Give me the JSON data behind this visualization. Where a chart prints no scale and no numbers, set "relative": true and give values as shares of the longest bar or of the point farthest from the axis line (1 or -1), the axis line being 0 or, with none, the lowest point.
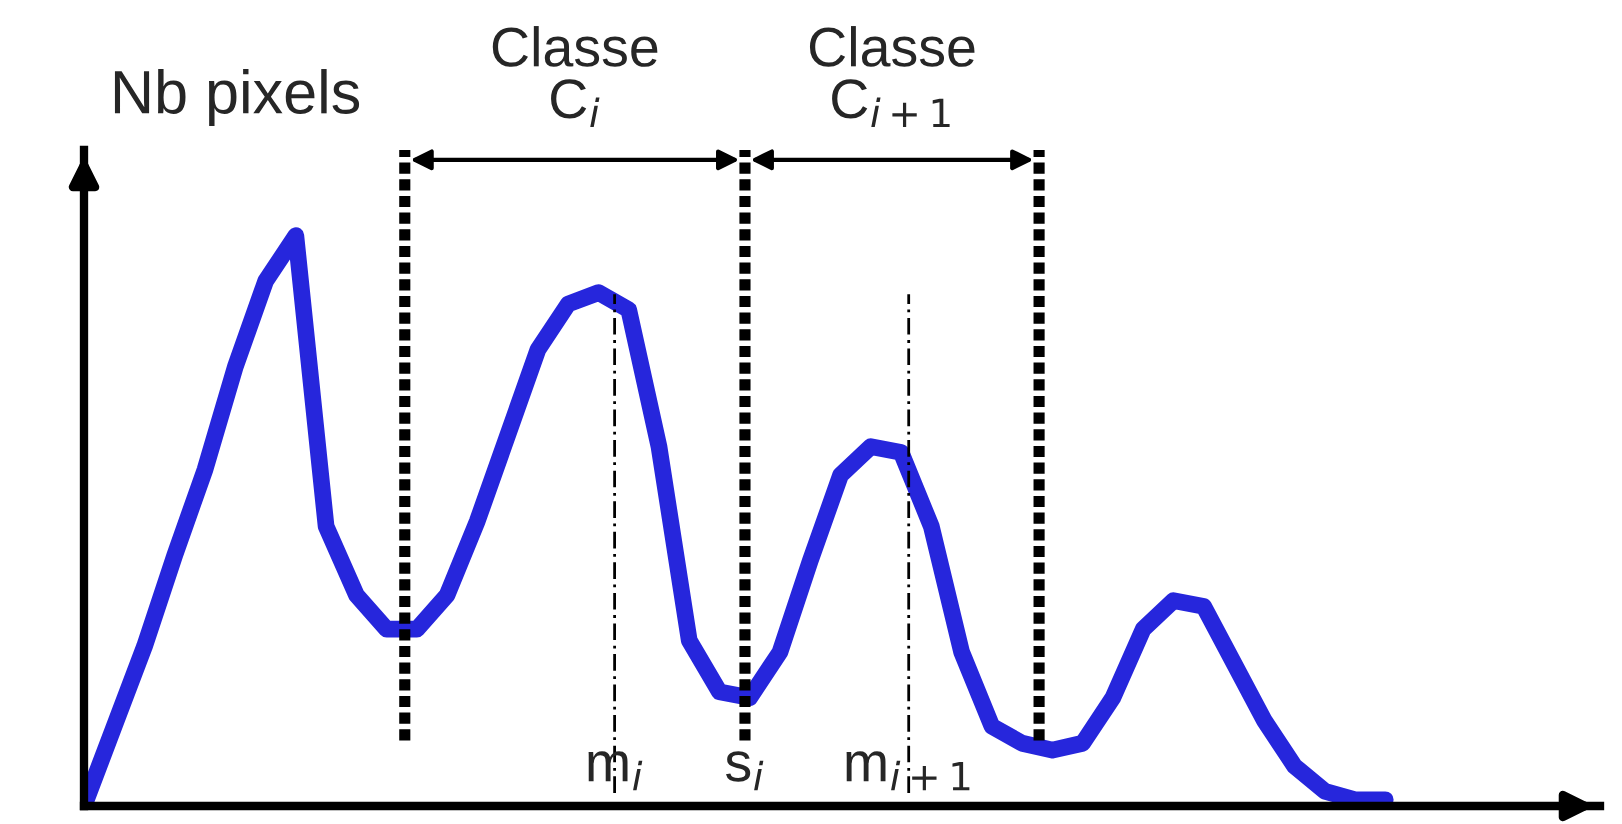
{
  "chart_data": {
    "type": "line",
    "relative": true,
    "ylabel": "Nb pixels",
    "marker": "none",
    "line_style": "solid",
    "categories": [
      null,
      null,
      null,
      null,
      null,
      null,
      null,
      null,
      null,
      null,
      null,
      null,
      null,
      null,
      null,
      null,
      null,
      null,
      null,
      null,
      null,
      null,
      null,
      null,
      null,
      null,
      null,
      null,
      null,
      null,
      null,
      null,
      null,
      null,
      null,
      null,
      null,
      null,
      null,
      null,
      null,
      null,
      null,
      null
    ],
    "series": [
      {
        "color": "#2626dc",
        "values": [
          0,
          0.14,
          0.28,
          0.44,
          0.59,
          0.77,
          0.92,
          1,
          0.49,
          0.37,
          0.31,
          0.31,
          0.37,
          0.5,
          0.65,
          0.8,
          0.88,
          0.9,
          0.87,
          0.63,
          0.29,
          0.2,
          0.19,
          0.27,
          0.43,
          0.58,
          0.63,
          0.62,
          0.49,
          0.27,
          0.14,
          0.11,
          0.098,
          0.11,
          0.19,
          0.31,
          0.36,
          0.35,
          0.25,
          0.15,
          0.07,
          0.026,
          0.011,
          0.011
        ]
      }
    ],
    "annotations": [
      "Classe\nC$_{i}$",
      "Classe\nC$_{i+1}$",
      "m$_{i}$",
      "s$_{i}$",
      "m$_{i+1}$"
    ]
  }
}
